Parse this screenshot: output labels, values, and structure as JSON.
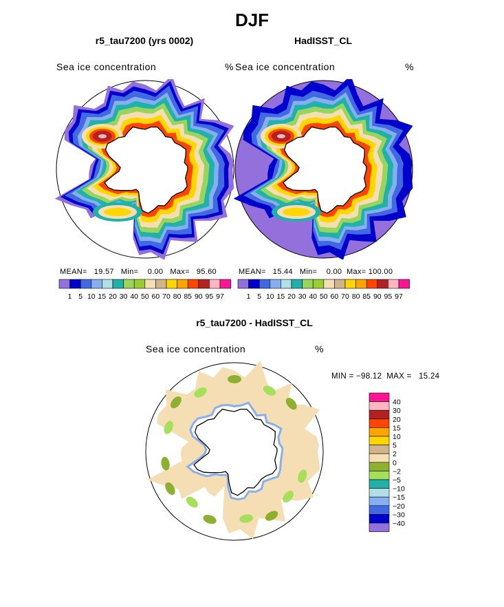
{
  "title": "DJF",
  "colors": {
    "abs_palette": [
      "#9370DB",
      "#0000CD",
      "#4169E1",
      "#87AFEF",
      "#B0E0E6",
      "#20B2AA",
      "#98D55E",
      "#9ACD32",
      "#F5DEB3",
      "#D2B48C",
      "#FFD700",
      "#FFA500",
      "#FF4500",
      "#B22222",
      "#FFB6C1",
      "#FF1493"
    ],
    "diff_palette": [
      "#9370DB",
      "#0000CD",
      "#4169E1",
      "#87AFEF",
      "#B0E0E6",
      "#20B2AA",
      "#A6E05A",
      "#8DB02F",
      "#F5DEB3",
      "#D2B48C",
      "#FFD700",
      "#FFA500",
      "#FF4500",
      "#B22222",
      "#FFB6C1",
      "#FF1493"
    ],
    "land": "#ffffff",
    "coast": "#000000"
  },
  "panels": {
    "left": {
      "title": "r5_tau7200 (yrs 0002)",
      "subtitle": "Sea ice concentration",
      "units": "%",
      "stats": {
        "mean_label": "MEAN=",
        "mean": "19.57",
        "min_label": "Min=",
        "min": "0.00",
        "max_label": "Max=",
        "max": "95.60"
      },
      "colorbar_labels": [
        "1",
        "5",
        "10",
        "15",
        "20",
        "30",
        "40",
        "50",
        "60",
        "70",
        "80",
        "85",
        "90",
        "95",
        "97"
      ]
    },
    "right": {
      "title": "HadISST_CL",
      "subtitle": "Sea ice concentration",
      "units": "%",
      "stats": {
        "mean_label": "MEAN=",
        "mean": "15.44",
        "min_label": "Min=",
        "min": "0.00",
        "max_label": "Max=",
        "max": "100.00"
      },
      "colorbar_labels": [
        "1",
        "5",
        "10",
        "15",
        "20",
        "30",
        "40",
        "50",
        "60",
        "70",
        "80",
        "85",
        "90",
        "95",
        "97"
      ]
    },
    "diff": {
      "title": "r5_tau7200 - HadISST_CL",
      "subtitle": "Sea ice concentration",
      "units": "%",
      "minmax": "MIN = −98.12  MAX =   15.24",
      "colorbar_labels": [
        "40",
        "30",
        "20",
        "15",
        "10",
        "5",
        "2",
        "0",
        "−2",
        "−5",
        "−10",
        "−15",
        "−20",
        "−30",
        "−40"
      ]
    }
  },
  "chart_data": [
    {
      "type": "heatmap",
      "title": "r5_tau7200 (yrs 0002)",
      "subtitle": "Sea ice concentration",
      "units": "%",
      "projection": "south polar stereographic",
      "levels": [
        1,
        5,
        10,
        15,
        20,
        30,
        40,
        50,
        60,
        70,
        80,
        85,
        90,
        95,
        97
      ],
      "stats": {
        "mean": 19.57,
        "min": 0.0,
        "max": 95.6
      }
    },
    {
      "type": "heatmap",
      "title": "HadISST_CL",
      "subtitle": "Sea ice concentration",
      "units": "%",
      "projection": "south polar stereographic",
      "levels": [
        1,
        5,
        10,
        15,
        20,
        30,
        40,
        50,
        60,
        70,
        80,
        85,
        90,
        95,
        97
      ],
      "stats": {
        "mean": 15.44,
        "min": 0.0,
        "max": 100.0
      }
    },
    {
      "type": "heatmap",
      "title": "r5_tau7200 - HadISST_CL",
      "subtitle": "Sea ice concentration",
      "units": "%",
      "projection": "south polar stereographic",
      "levels": [
        -40,
        -30,
        -20,
        -15,
        -10,
        -5,
        -2,
        0,
        2,
        5,
        10,
        15,
        20,
        30,
        40
      ],
      "stats": {
        "min": -98.12,
        "max": 15.24
      }
    }
  ]
}
